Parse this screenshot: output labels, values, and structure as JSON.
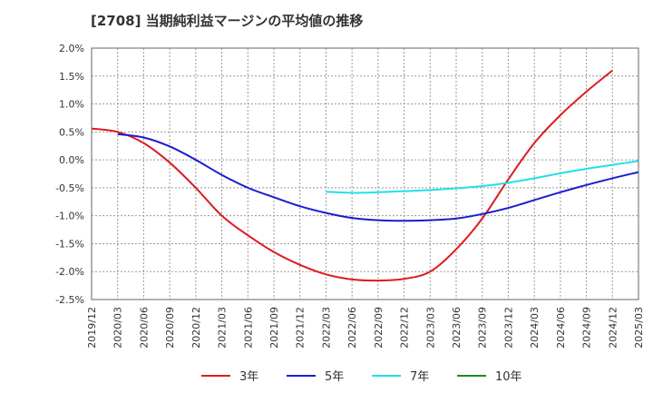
{
  "chart_data": {
    "type": "line",
    "title": "[2708]  当期純利益マージンの平均値の推移",
    "xlabel": "",
    "ylabel": "",
    "ylim": [
      -2.5,
      2.0
    ],
    "y_ticks": [
      "2.0%",
      "1.5%",
      "1.0%",
      "0.5%",
      "0.0%",
      "-0.5%",
      "-1.0%",
      "-1.5%",
      "-2.0%",
      "-2.5%"
    ],
    "x_ticks": [
      "2019/12",
      "2020/03",
      "2020/06",
      "2020/09",
      "2020/12",
      "2021/03",
      "2021/06",
      "2021/09",
      "2021/12",
      "2022/03",
      "2022/06",
      "2022/09",
      "2022/12",
      "2023/03",
      "2023/06",
      "2023/09",
      "2023/12",
      "2024/03",
      "2024/06",
      "2024/09",
      "2024/12",
      "2025/03"
    ],
    "grid": true,
    "legend_position": "bottom",
    "series": [
      {
        "name": "3年",
        "color": "#dd1c1c",
        "start_index": 0,
        "values": [
          0.56,
          0.5,
          0.3,
          -0.05,
          -0.5,
          -1.0,
          -1.35,
          -1.65,
          -1.88,
          -2.05,
          -2.14,
          -2.16,
          -2.13,
          -2.0,
          -1.6,
          -1.05,
          -0.35,
          0.3,
          0.8,
          1.22,
          1.6
        ]
      },
      {
        "name": "5年",
        "color": "#1c1ccc",
        "start_index": 1,
        "values": [
          0.46,
          0.4,
          0.24,
          0.0,
          -0.27,
          -0.5,
          -0.67,
          -0.83,
          -0.95,
          -1.04,
          -1.08,
          -1.09,
          -1.08,
          -1.05,
          -0.97,
          -0.86,
          -0.72,
          -0.58,
          -0.45,
          -0.33,
          -0.22
        ]
      },
      {
        "name": "7年",
        "color": "#22e0e8",
        "start_index": 9,
        "values": [
          -0.57,
          -0.59,
          -0.58,
          -0.56,
          -0.54,
          -0.51,
          -0.47,
          -0.41,
          -0.33,
          -0.24,
          -0.16,
          -0.09,
          -0.02
        ]
      },
      {
        "name": "10年",
        "color": "#1c8c1c",
        "start_index": 0,
        "values": []
      }
    ]
  }
}
